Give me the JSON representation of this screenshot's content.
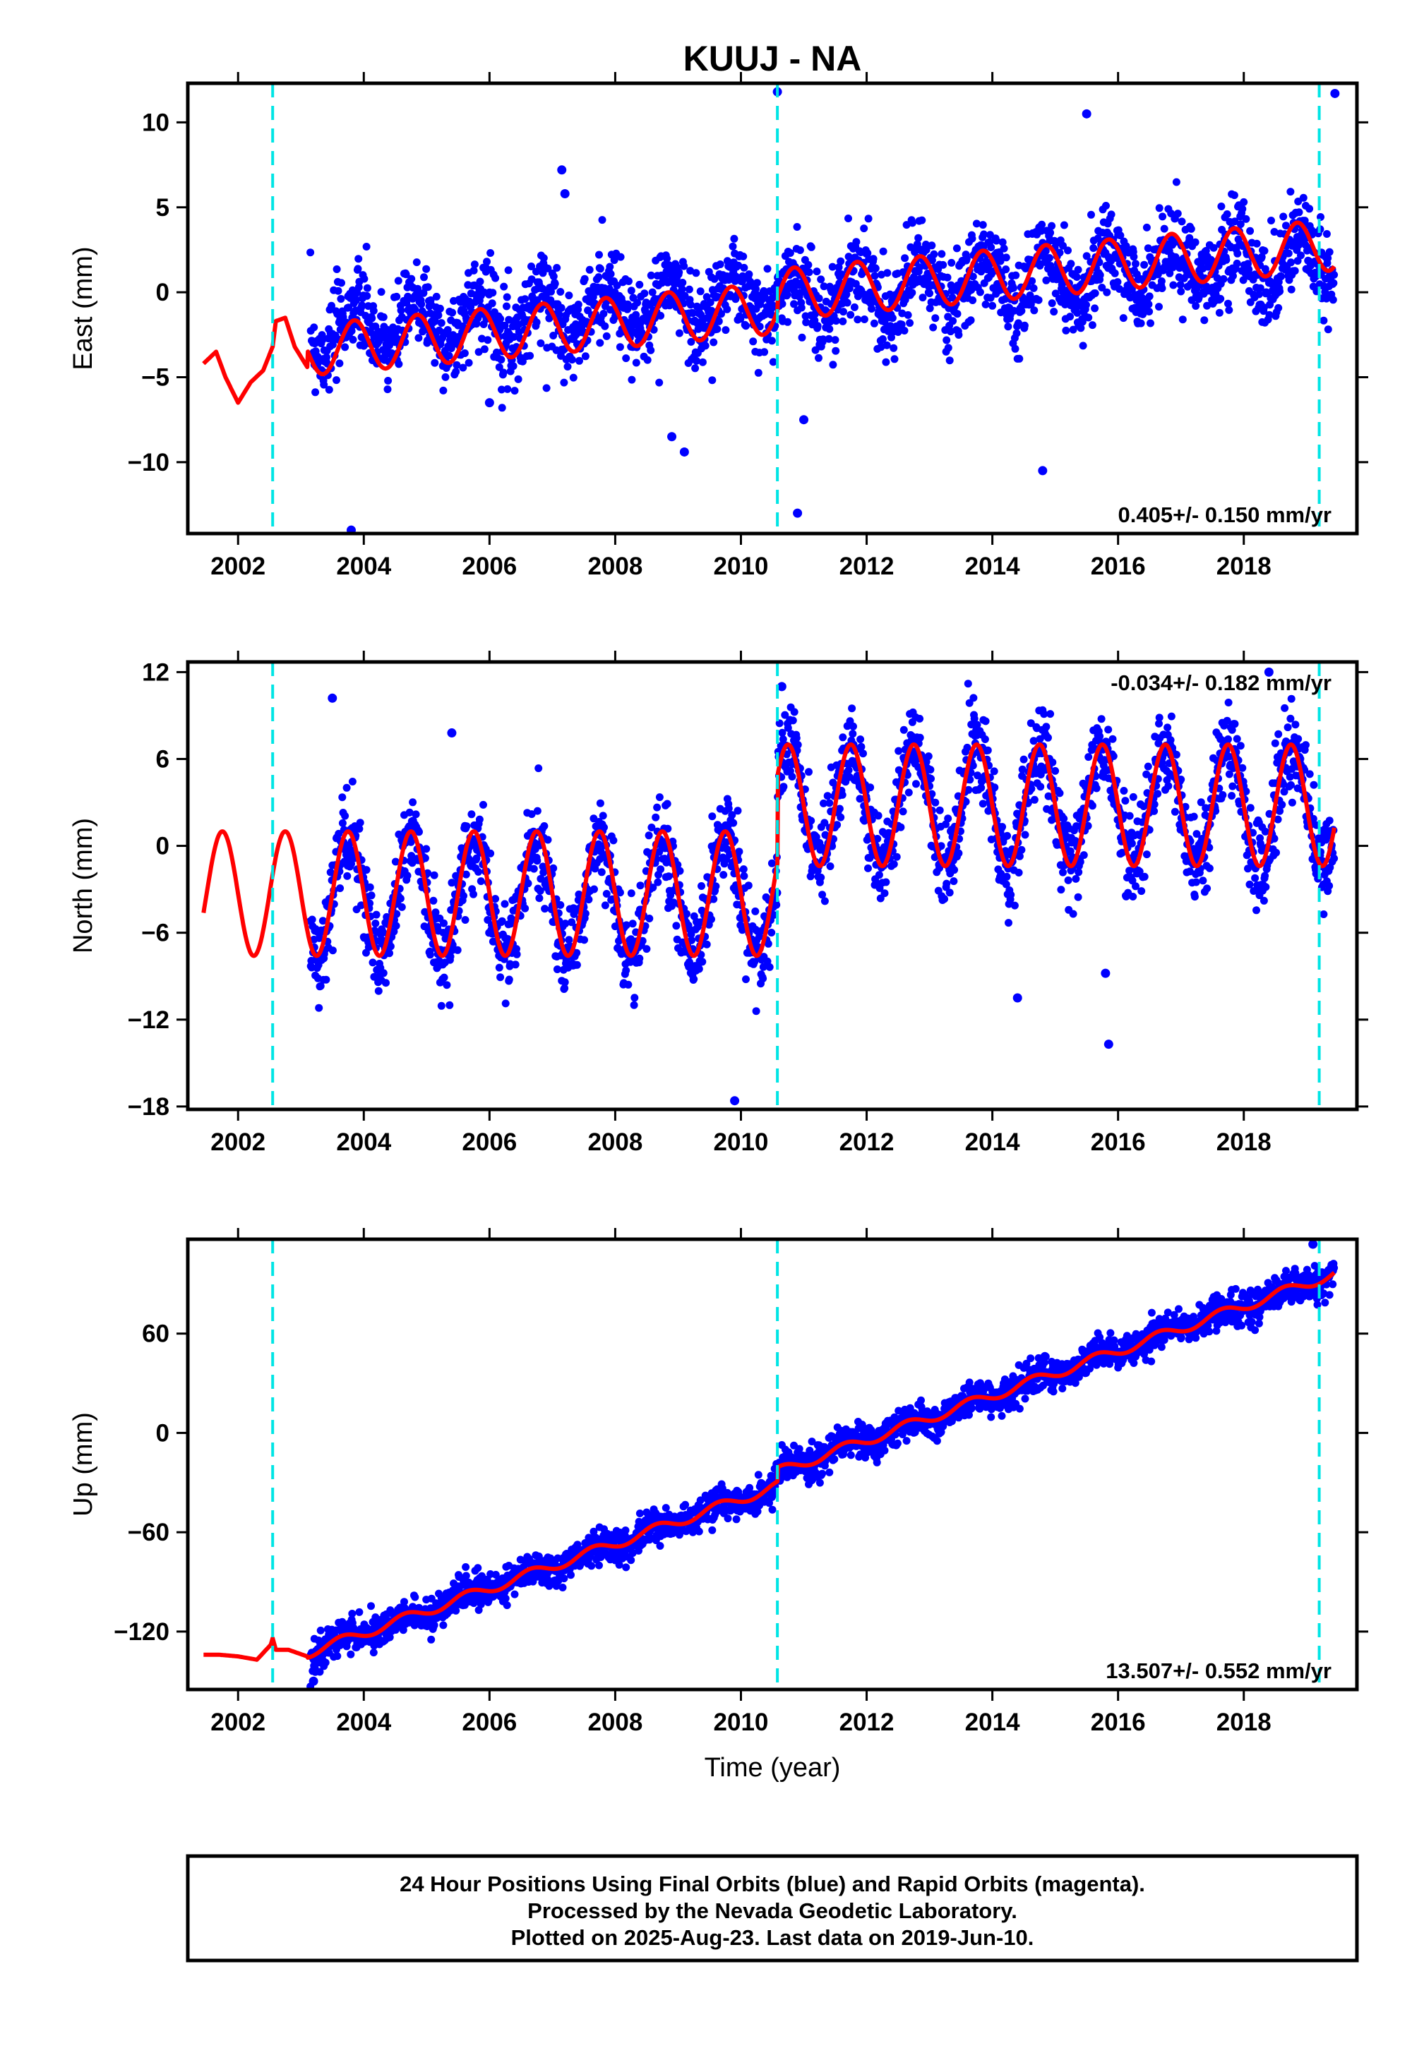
{
  "title": "KUUJ - NA",
  "colors": {
    "points": "#0000ff",
    "model": "#ff0000",
    "breaks": "#00e5e5",
    "frame": "#000000"
  },
  "xlabel": "Time (year)",
  "footer": {
    "line1": "24 Hour Positions Using Final Orbits (blue) and Rapid Orbits (magenta).",
    "line2": "Processed by the Nevada Geodetic Laboratory.",
    "line3": "Plotted on 2025-Aug-23. Last data on 2019-Jun-10."
  },
  "chart_data": [
    {
      "type": "scatter",
      "panel": "east",
      "ylabel": "East (mm)",
      "rate_text": "0.405+/- 0.150 mm/yr",
      "xlim": [
        2001.2,
        2019.8
      ],
      "ylim": [
        -14.2,
        12.3
      ],
      "x_ticks": [
        2002,
        2004,
        2006,
        2008,
        2010,
        2012,
        2014,
        2016,
        2018
      ],
      "y_ticks": [
        -10,
        -5,
        0,
        5,
        10
      ],
      "break_lines": [
        2002.55,
        2010.58,
        2019.2
      ],
      "data_range": [
        2003.15,
        2019.44
      ],
      "series": [
        {
          "role": "daily positions",
          "trend": {
            "start_year": 2003.2,
            "start_value": -2.3,
            "rate": 0.27
          },
          "noise": 1.3,
          "outliers": [
            [
              2007.15,
              7.2
            ],
            [
              2007.2,
              5.8
            ],
            [
              2008.9,
              -8.5
            ],
            [
              2009.1,
              -9.4
            ],
            [
              2010.58,
              11.8
            ],
            [
              2010.9,
              -13
            ],
            [
              2003.8,
              -14
            ],
            [
              2014.8,
              -10.5
            ],
            [
              2015.5,
              10.5
            ],
            [
              2019.45,
              11.7
            ],
            [
              2006.0,
              -6.5
            ],
            [
              2011.0,
              -7.5
            ]
          ]
        },
        {
          "role": "model fit",
          "knots": [
            [
              2001.45,
              -4.2
            ],
            [
              2001.65,
              -3.5
            ],
            [
              2001.8,
              -5.0
            ],
            [
              2002.0,
              -6.5
            ],
            [
              2002.2,
              -5.3
            ],
            [
              2002.4,
              -4.6
            ],
            [
              2002.55,
              -3.2
            ],
            [
              2002.6,
              -1.7
            ],
            [
              2002.75,
              -1.5
            ],
            [
              2002.9,
              -3.2
            ],
            [
              2003.1,
              -4.4
            ]
          ],
          "seasonal": {
            "start_year": 2003.1,
            "end_year": 2019.44,
            "start_value": -3.4,
            "rate": 0.33,
            "amplitude": 1.5,
            "phase": 0.6,
            "step_at": 2010.58,
            "step_size": 0.8
          }
        }
      ]
    },
    {
      "type": "scatter",
      "panel": "north",
      "ylabel": "North (mm)",
      "rate_text": "-0.034+/- 0.182 mm/yr",
      "xlim": [
        2001.2,
        2019.8
      ],
      "ylim": [
        -18.2,
        12.7
      ],
      "x_ticks": [
        2002,
        2004,
        2006,
        2008,
        2010,
        2012,
        2014,
        2016,
        2018
      ],
      "y_ticks": [
        -18,
        -12,
        -6,
        0,
        6,
        12
      ],
      "break_lines": [
        2002.55,
        2010.58,
        2019.2
      ],
      "data_range": [
        2003.15,
        2019.44
      ],
      "series": [
        {
          "role": "daily positions",
          "pre_mean": -3.5,
          "post_mean": 2.8,
          "amplitude": 4.0,
          "noise": 1.5,
          "outliers": [
            [
              2009.9,
              -17.6
            ],
            [
              2015.85,
              -13.7
            ],
            [
              2003.5,
              10.2
            ],
            [
              2005.4,
              7.8
            ],
            [
              2018.4,
              12.0
            ],
            [
              2010.65,
              11.0
            ],
            [
              2015.8,
              -8.8
            ],
            [
              2014.4,
              -10.5
            ]
          ]
        },
        {
          "role": "model fit",
          "pre_mean": -3.3,
          "post_mean": 2.8,
          "pre_amplitude": 4.3,
          "post_amplitude": 4.2,
          "phase": 0.5,
          "start_year": 2001.45,
          "end_year": 2019.44,
          "step_at": 2010.58
        }
      ]
    },
    {
      "type": "scatter",
      "panel": "up",
      "ylabel": "Up (mm)",
      "rate_text": "13.507+/- 0.552 mm/yr",
      "xlim": [
        2001.2,
        2019.8
      ],
      "ylim": [
        -155,
        117
      ],
      "x_ticks": [
        2002,
        2004,
        2006,
        2008,
        2010,
        2012,
        2014,
        2016,
        2018
      ],
      "y_ticks": [
        -120,
        -60,
        0,
        60
      ],
      "break_lines": [
        2002.55,
        2010.58,
        2019.2
      ],
      "data_range": [
        2003.15,
        2019.44
      ],
      "series": [
        {
          "role": "daily positions",
          "noise": 5.0,
          "outliers": [
            [
              2003.2,
              -150
            ],
            [
              2019.1,
              114
            ]
          ]
        },
        {
          "role": "model fit",
          "knots": [
            [
              2001.45,
              -134
            ],
            [
              2001.7,
              -134
            ],
            [
              2002.0,
              -135
            ],
            [
              2002.3,
              -137
            ],
            [
              2002.52,
              -128
            ],
            [
              2002.55,
              -124
            ],
            [
              2002.6,
              -131
            ],
            [
              2002.8,
              -131
            ],
            [
              2003.1,
              -135
            ]
          ],
          "trend": {
            "start_year": 2003.1,
            "end_year": 2019.44,
            "start_value": -133,
            "rate": 13.5,
            "seasonal_amplitude": 3.0,
            "phase": 0.4,
            "step_at": 2010.58,
            "step_size": 8.5
          }
        }
      ]
    }
  ]
}
